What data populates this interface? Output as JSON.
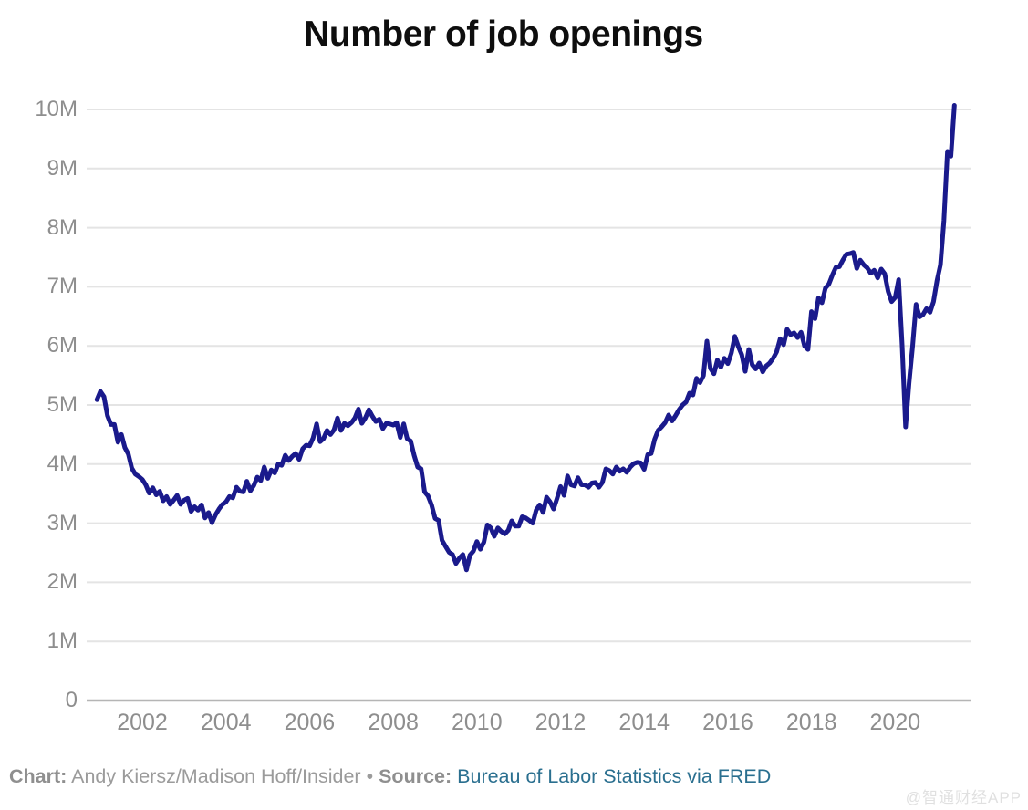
{
  "page": {
    "background": "#ffffff"
  },
  "chart_data": {
    "type": "line",
    "title": "Number of job openings",
    "legend": "none",
    "grid": "horizontal",
    "colors": {
      "line": "#1a1a8c",
      "grid": "#e4e4e4",
      "baseline": "#b5b5b5",
      "tick_text": "#8e8e8e"
    },
    "y_axis": {
      "tick_labels": [
        "0",
        "1M",
        "2M",
        "3M",
        "4M",
        "5M",
        "6M",
        "7M",
        "8M",
        "9M",
        "10M"
      ],
      "tick_values": [
        0,
        1,
        2,
        3,
        4,
        5,
        6,
        7,
        8,
        9,
        10
      ],
      "unit": "millions",
      "ylim": [
        0,
        10.5
      ]
    },
    "x_axis": {
      "tick_labels": [
        "2002",
        "2004",
        "2006",
        "2008",
        "2010",
        "2012",
        "2014",
        "2016",
        "2018",
        "2020"
      ],
      "range_start": "2000-12",
      "range_end": "2021-06"
    },
    "series": [
      {
        "name": "Job openings",
        "frequency": "monthly",
        "start": "2000-12",
        "end": "2021-06",
        "unit": "millions",
        "values": [
          5.09,
          5.23,
          5.14,
          4.82,
          4.67,
          4.67,
          4.37,
          4.5,
          4.28,
          4.17,
          3.93,
          3.83,
          3.79,
          3.74,
          3.65,
          3.51,
          3.6,
          3.48,
          3.54,
          3.38,
          3.45,
          3.32,
          3.39,
          3.47,
          3.32,
          3.39,
          3.42,
          3.2,
          3.28,
          3.22,
          3.31,
          3.09,
          3.18,
          3.01,
          3.14,
          3.24,
          3.32,
          3.36,
          3.45,
          3.43,
          3.61,
          3.54,
          3.53,
          3.71,
          3.55,
          3.64,
          3.78,
          3.72,
          3.95,
          3.76,
          3.9,
          3.85,
          4.0,
          3.98,
          4.15,
          4.06,
          4.13,
          4.18,
          4.08,
          4.26,
          4.32,
          4.31,
          4.44,
          4.68,
          4.38,
          4.43,
          4.57,
          4.5,
          4.58,
          4.78,
          4.57,
          4.69,
          4.65,
          4.7,
          4.78,
          4.93,
          4.69,
          4.78,
          4.92,
          4.81,
          4.72,
          4.76,
          4.6,
          4.69,
          4.68,
          4.66,
          4.7,
          4.45,
          4.68,
          4.43,
          4.39,
          4.15,
          3.95,
          3.92,
          3.53,
          3.46,
          3.31,
          3.08,
          3.05,
          2.71,
          2.61,
          2.51,
          2.47,
          2.32,
          2.41,
          2.47,
          2.21,
          2.46,
          2.53,
          2.69,
          2.56,
          2.68,
          2.97,
          2.92,
          2.78,
          2.92,
          2.86,
          2.82,
          2.88,
          3.04,
          2.95,
          2.95,
          3.11,
          3.09,
          3.05,
          3.0,
          3.22,
          3.31,
          3.18,
          3.44,
          3.36,
          3.24,
          3.42,
          3.62,
          3.47,
          3.8,
          3.65,
          3.63,
          3.77,
          3.65,
          3.65,
          3.61,
          3.68,
          3.69,
          3.61,
          3.69,
          3.92,
          3.89,
          3.83,
          3.95,
          3.88,
          3.92,
          3.86,
          3.95,
          4.01,
          4.03,
          4.02,
          3.91,
          4.16,
          4.18,
          4.42,
          4.57,
          4.63,
          4.7,
          4.83,
          4.73,
          4.82,
          4.92,
          5.0,
          5.05,
          5.2,
          5.17,
          5.45,
          5.38,
          5.5,
          6.08,
          5.62,
          5.53,
          5.76,
          5.64,
          5.79,
          5.7,
          5.88,
          6.16,
          5.99,
          5.85,
          5.57,
          5.94,
          5.68,
          5.61,
          5.71,
          5.56,
          5.66,
          5.71,
          5.79,
          5.9,
          6.12,
          6.02,
          6.28,
          6.19,
          6.22,
          6.14,
          6.23,
          6.0,
          5.94,
          6.58,
          6.46,
          6.81,
          6.73,
          6.98,
          7.05,
          7.2,
          7.33,
          7.34,
          7.45,
          7.55,
          7.56,
          7.58,
          7.31,
          7.45,
          7.37,
          7.32,
          7.23,
          7.28,
          7.15,
          7.3,
          7.22,
          6.92,
          6.75,
          6.82,
          7.12,
          6.01,
          4.63,
          5.37,
          6.0,
          6.7,
          6.49,
          6.53,
          6.63,
          6.57,
          6.75,
          7.1,
          7.37,
          8.12,
          9.29,
          9.21,
          10.07
        ]
      }
    ]
  },
  "footer": {
    "chart_label": "Chart:",
    "chart_credit": "Andy Kiersz/Madison Hoff/Insider",
    "bullet": "•",
    "source_label": "Source:",
    "source_link": "Bureau of Labor Statistics via FRED",
    "link_color": "#2a6f8f"
  },
  "watermark": {
    "text": "@智通财经APP"
  }
}
